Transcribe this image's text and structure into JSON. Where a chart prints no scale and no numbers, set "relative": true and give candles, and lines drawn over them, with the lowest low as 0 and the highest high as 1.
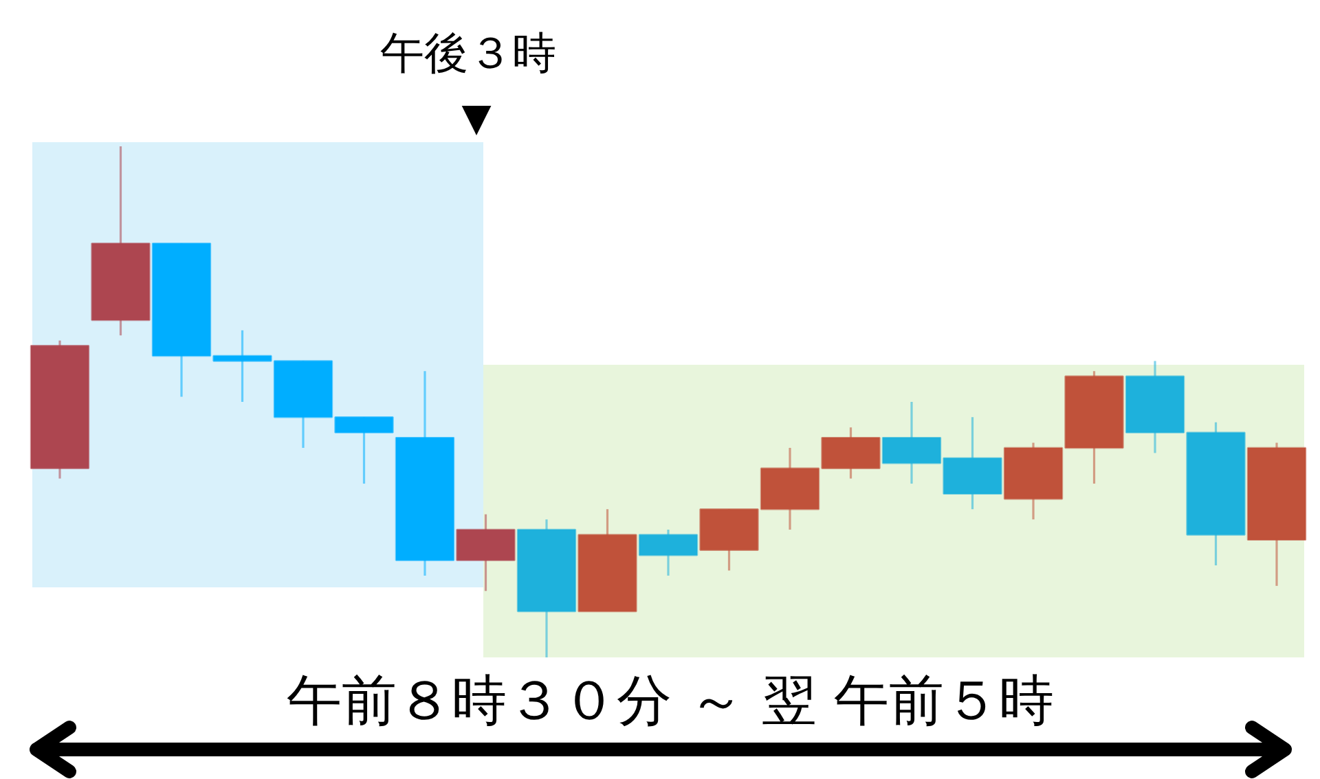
{
  "chart_data": {
    "type": "candlestick",
    "relative": true,
    "categories": [
      null,
      null,
      null,
      null,
      null,
      null,
      null,
      null,
      null,
      null,
      null,
      null,
      null,
      null,
      null,
      null,
      null,
      null,
      null,
      null,
      null
    ],
    "ohlc": [
      [
        0.37,
        0.62,
        0.35,
        0.61
      ],
      [
        0.66,
        1.0,
        0.63,
        0.81
      ],
      [
        0.81,
        0.81,
        0.51,
        0.59
      ],
      [
        0.59,
        0.64,
        0.5,
        0.58
      ],
      [
        0.58,
        0.58,
        0.41,
        0.47
      ],
      [
        0.47,
        0.47,
        0.34,
        0.44
      ],
      [
        0.43,
        0.56,
        0.16,
        0.19
      ],
      [
        0.19,
        0.28,
        0.13,
        0.25
      ],
      [
        0.25,
        0.27,
        0,
        0.09
      ],
      [
        0.09,
        0.29,
        0.09,
        0.24
      ],
      [
        0.24,
        0.25,
        0.16,
        0.2
      ],
      [
        0.21,
        0.29,
        0.17,
        0.29
      ],
      [
        0.29,
        0.41,
        0.25,
        0.37
      ],
      [
        0.37,
        0.45,
        0.35,
        0.43
      ],
      [
        0.43,
        0.5,
        0.34,
        0.38
      ],
      [
        0.39,
        0.47,
        0.29,
        0.32
      ],
      [
        0.31,
        0.42,
        0.27,
        0.41
      ],
      [
        0.41,
        0.56,
        0.34,
        0.55
      ],
      [
        0.55,
        0.58,
        0.4,
        0.44
      ],
      [
        0.44,
        0.46,
        0.18,
        0.24
      ],
      [
        0.23,
        0.42,
        0.14,
        0.41
      ]
    ],
    "colors": [
      "#ad4650",
      "#ad4650",
      "#00aeff",
      "#00aeff",
      "#00aeff",
      "#00aeff",
      "#00aeff",
      "#ad4650",
      "#1eb1dc",
      "#c0523a",
      "#1eb1dc",
      "#c0523a",
      "#c0523a",
      "#c0523a",
      "#1eb1dc",
      "#1eb1dc",
      "#c0523a",
      "#c0523a",
      "#1eb1dc",
      "#1eb1dc",
      "#c0523a"
    ],
    "annotations": [
      "午後３時",
      "▼",
      "午前８時３０分 ～ 翌 午前５時"
    ]
  }
}
